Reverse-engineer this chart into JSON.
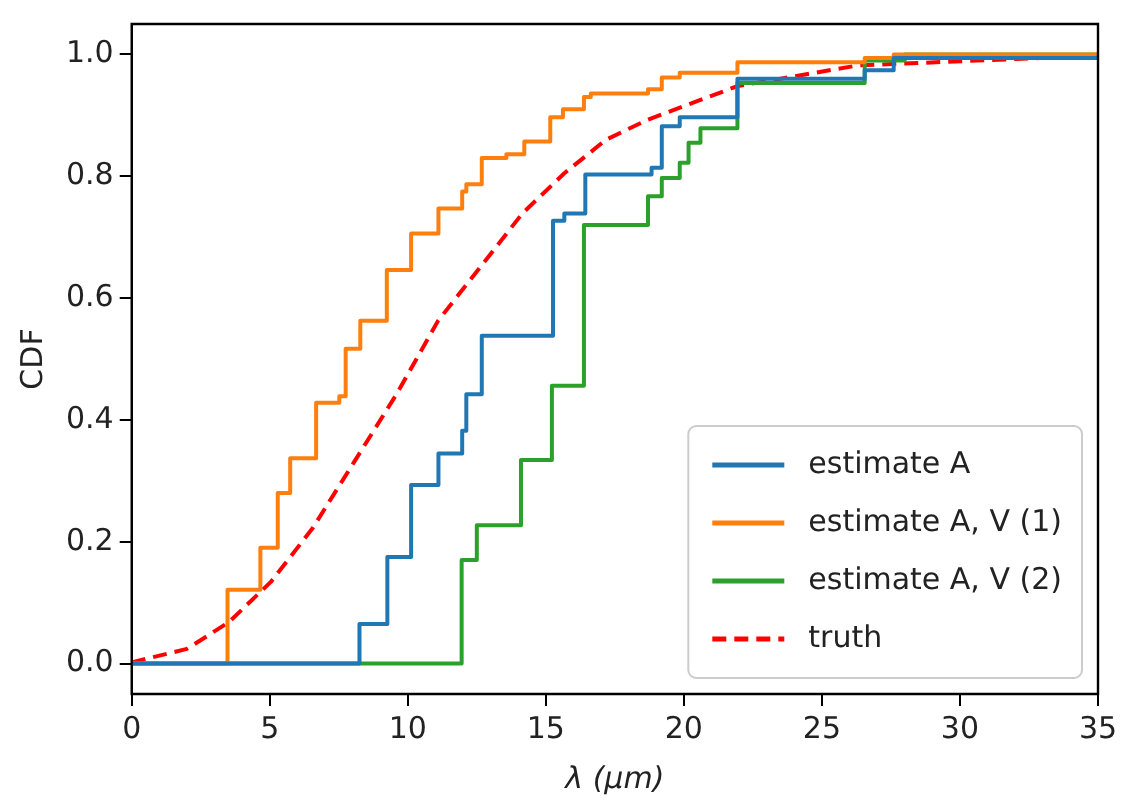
{
  "chart_data": {
    "type": "step",
    "xlabel": "λ (μm)",
    "ylabel": "CDF",
    "xlim": [
      0,
      35
    ],
    "ylim": [
      -0.05,
      1.05
    ],
    "xticks": [
      0,
      5,
      10,
      15,
      20,
      25,
      30,
      35
    ],
    "yticks": [
      {
        "value": 0,
        "label": "0.0"
      },
      {
        "value": 0.2,
        "label": "0.2"
      },
      {
        "value": 0.4,
        "label": "0.4"
      },
      {
        "value": 0.6,
        "label": "0.6"
      },
      {
        "value": 0.8,
        "label": "0.8"
      },
      {
        "value": 1,
        "label": "1.0"
      }
    ],
    "grid": false,
    "legend": "bottom right",
    "series": [
      {
        "name": "estimate A",
        "color": "#1f77b4",
        "x": [
          0,
          8.25,
          9.26,
          10.12,
          11.11,
          11.97,
          12.12,
          12.68,
          15.26,
          15.67,
          16.43,
          18.83,
          19.2,
          19.85,
          21.94,
          26.55,
          27.6,
          35
        ],
        "values": [
          0,
          0.065,
          0.175,
          0.293,
          0.345,
          0.382,
          0.442,
          0.538,
          0.727,
          0.739,
          0.803,
          0.814,
          0.882,
          0.897,
          0.96,
          0.974,
          0.994,
          0.994
        ]
      },
      {
        "name": "estimate A, V (1)",
        "color": "#ff7f0e",
        "x": [
          0,
          3.47,
          4.66,
          5.29,
          5.74,
          6.68,
          7.52,
          7.75,
          8.28,
          9.24,
          10.12,
          11.11,
          11.97,
          12.12,
          12.68,
          13.57,
          14.22,
          15.16,
          15.62,
          16.38,
          16.63,
          18.7,
          19.2,
          19.85,
          21.94,
          26.55,
          27.6,
          35
        ],
        "values": [
          0,
          0.121,
          0.19,
          0.28,
          0.337,
          0.428,
          0.439,
          0.517,
          0.563,
          0.646,
          0.706,
          0.747,
          0.775,
          0.787,
          0.83,
          0.836,
          0.857,
          0.897,
          0.91,
          0.93,
          0.936,
          0.943,
          0.962,
          0.97,
          0.987,
          0.994,
          1,
          1
        ]
      },
      {
        "name": "estimate A, V (2)",
        "color": "#2ca02c",
        "x": [
          0,
          11.95,
          12.5,
          14.1,
          15.22,
          16.38,
          18.7,
          19.2,
          19.85,
          20.17,
          20.6,
          21.94,
          26.55,
          28,
          35
        ],
        "values": [
          0,
          0.17,
          0.227,
          0.334,
          0.456,
          0.72,
          0.767,
          0.797,
          0.822,
          0.855,
          0.879,
          0.953,
          0.99,
          1,
          1
        ]
      },
      {
        "name": "truth",
        "type": "line",
        "line_style": "dashed",
        "color": "#ff0000",
        "x": [
          0,
          2,
          3.52,
          5.04,
          6.55,
          8.07,
          9.59,
          11.1,
          12.63,
          14.15,
          15.67,
          17.18,
          18.7,
          21.94,
          26.3,
          35
        ],
        "values": [
          0.002,
          0.024,
          0.068,
          0.134,
          0.222,
          0.332,
          0.442,
          0.563,
          0.651,
          0.739,
          0.805,
          0.86,
          0.893,
          0.948,
          0.982,
          0.998
        ]
      }
    ]
  }
}
